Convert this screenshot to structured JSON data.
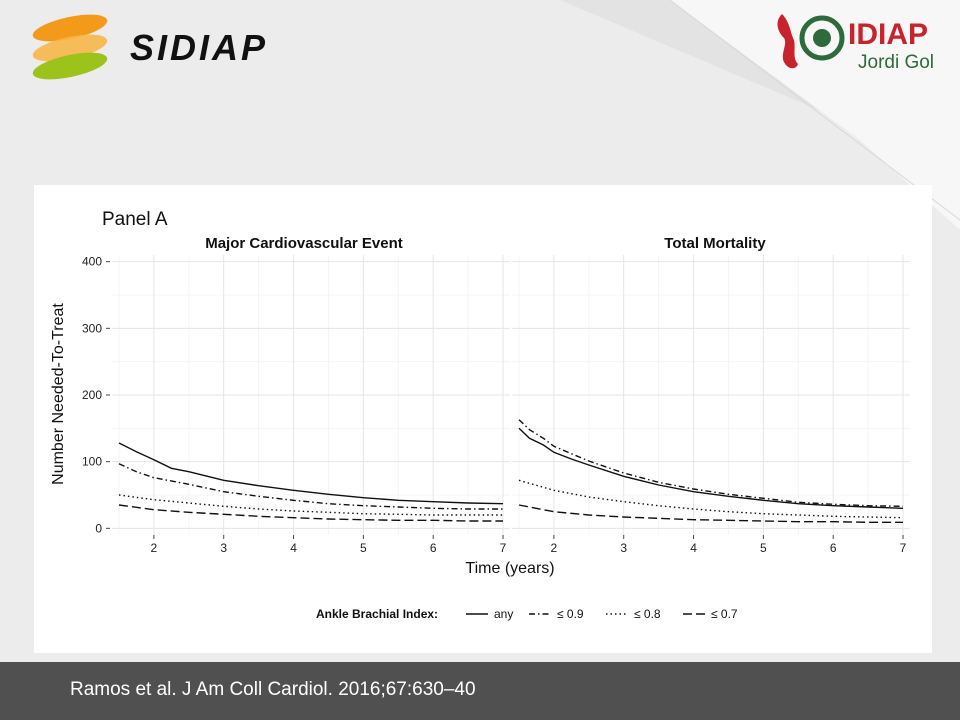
{
  "brand": {
    "left_logo_text": "SIDIAP",
    "right_logo_name": "IDIAP",
    "right_logo_sub": "Jordi Gol"
  },
  "colors": {
    "sidiap_orange": "#f39a1b",
    "sidiap_green": "#9bc31c",
    "idiap_red": "#c8232c",
    "idiap_green": "#2e6b3a"
  },
  "citation": "Ramos et al. J Am Coll Cardiol. 2016;67:630–40",
  "chart_data": {
    "type": "line",
    "panel_title": "Panel A",
    "xlabel": "Time (years)",
    "ylabel": "Number Needed-To-Treat",
    "xlim": [
      1.4,
      7.1
    ],
    "ylim": [
      -10,
      410
    ],
    "x_ticks": [
      "2",
      "3",
      "4",
      "5",
      "6",
      "7"
    ],
    "y_ticks": [
      "0",
      "100",
      "200",
      "300",
      "400"
    ],
    "grid": true,
    "legend": {
      "title": "Ankle Brachial Index:",
      "placement": "bottom",
      "entries": [
        {
          "label": "any",
          "style": "solid"
        },
        {
          "label": "≤ 0.9",
          "style": "dotdash"
        },
        {
          "label": "≤ 0.8",
          "style": "dotted"
        },
        {
          "label": "≤ 0.7",
          "style": "longdash"
        }
      ]
    },
    "facets": [
      {
        "title": "Major Cardiovascular Event",
        "series": [
          {
            "name": "any",
            "style": "solid",
            "x": [
              1.5,
              1.75,
              2,
              2.25,
              2.5,
              3,
              3.5,
              4,
              4.5,
              5,
              5.5,
              6,
              6.5,
              7
            ],
            "y": [
              128,
              115,
              103,
              90,
              85,
              72,
              64,
              57,
              51,
              46,
              42,
              40,
              38,
              37
            ]
          },
          {
            "name": "≤ 0.9",
            "style": "dotdash",
            "x": [
              1.5,
              1.75,
              2,
              2.5,
              3,
              3.5,
              4,
              4.5,
              5,
              5.5,
              6,
              6.5,
              7
            ],
            "y": [
              97,
              85,
              76,
              66,
              55,
              48,
              42,
              37,
              34,
              32,
              30,
              29,
              29
            ]
          },
          {
            "name": "≤ 0.8",
            "style": "dotted",
            "x": [
              1.5,
              2,
              2.5,
              3,
              3.5,
              4,
              4.5,
              5,
              5.5,
              6,
              6.5,
              7
            ],
            "y": [
              50,
              43,
              38,
              33,
              29,
              26,
              24,
              22,
              21,
              20,
              20,
              20
            ]
          },
          {
            "name": "≤ 0.7",
            "style": "longdash",
            "x": [
              1.5,
              2,
              2.5,
              3,
              3.5,
              4,
              4.5,
              5,
              5.5,
              6,
              6.5,
              7
            ],
            "y": [
              35,
              28,
              24,
              21,
              18,
              16,
              14,
              13,
              12,
              12,
              11,
              11
            ]
          }
        ]
      },
      {
        "title": "Total Mortality",
        "series": [
          {
            "name": "any",
            "style": "solid",
            "x": [
              1.5,
              1.65,
              1.85,
              2,
              2.25,
              2.5,
              3,
              3.5,
              4,
              4.5,
              5,
              5.5,
              6,
              6.5,
              7
            ],
            "y": [
              150,
              135,
              125,
              114,
              104,
              95,
              78,
              65,
              55,
              48,
              42,
              37,
              34,
              32,
              30
            ]
          },
          {
            "name": "≤ 0.9",
            "style": "dotdash",
            "x": [
              1.5,
              1.65,
              1.85,
              2,
              2.25,
              2.5,
              3,
              3.5,
              4,
              4.5,
              5,
              5.5,
              6,
              6.5,
              7
            ],
            "y": [
              163,
              148,
              135,
              123,
              112,
              101,
              83,
              69,
              59,
              51,
              45,
              39,
              36,
              34,
              33
            ]
          },
          {
            "name": "≤ 0.8",
            "style": "dotted",
            "x": [
              1.5,
              2,
              2.5,
              3,
              3.5,
              4,
              4.5,
              5,
              5.5,
              6,
              6.5,
              7
            ],
            "y": [
              72,
              57,
              47,
              40,
              34,
              29,
              25,
              22,
              20,
              18,
              17,
              16
            ]
          },
          {
            "name": "≤ 0.7",
            "style": "longdash",
            "x": [
              1.5,
              2,
              2.5,
              3,
              3.5,
              4,
              4.5,
              5,
              5.5,
              6,
              6.5,
              7
            ],
            "y": [
              35,
              25,
              20,
              17,
              15,
              13,
              12,
              11,
              10,
              10,
              9,
              9
            ]
          }
        ]
      }
    ]
  }
}
